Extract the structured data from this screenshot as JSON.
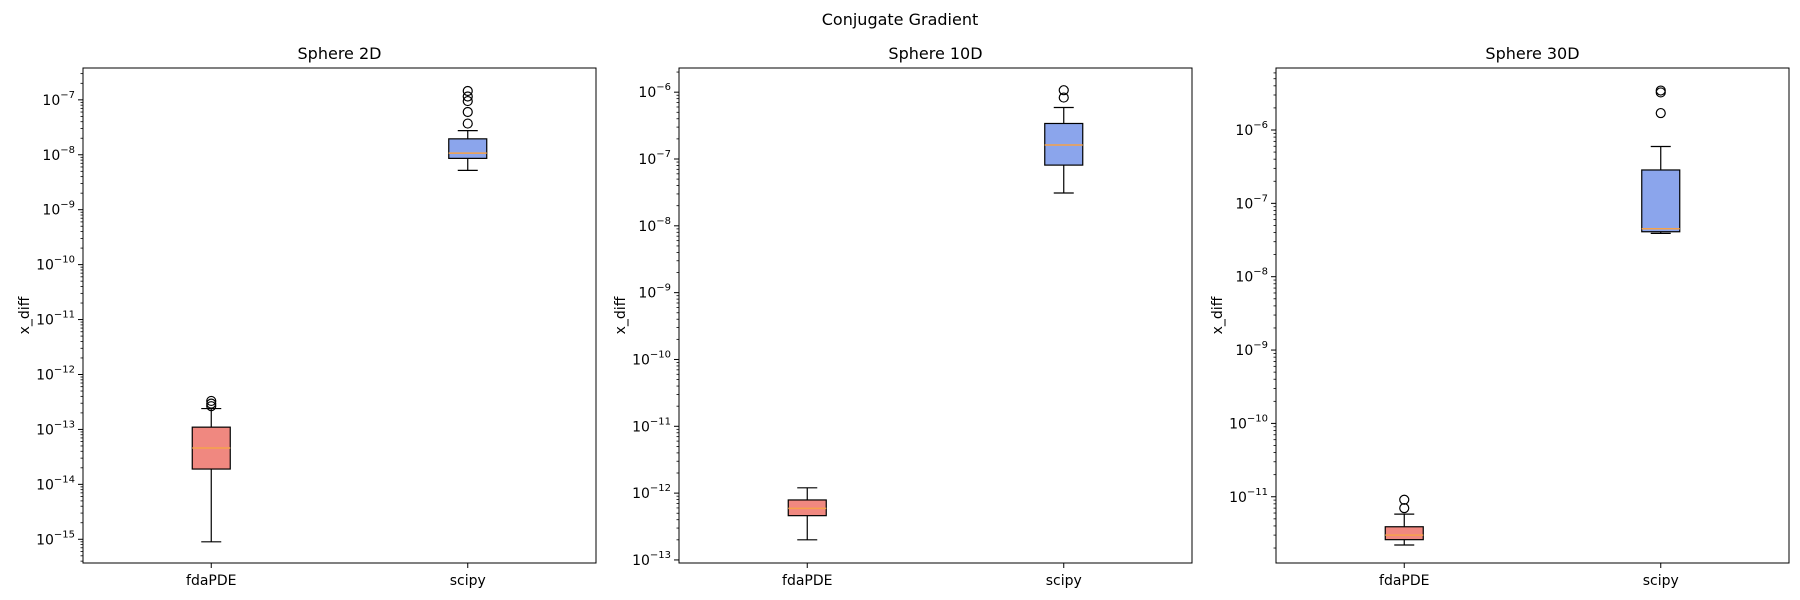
{
  "figure": {
    "suptitle": "Conjugate Gradient"
  },
  "colors": {
    "fdaPDE": "#f08880",
    "scipy": "#8ba5ec",
    "median": "#f5a24a",
    "edge": "#000000"
  },
  "chart_data": [
    {
      "type": "boxplot",
      "title": "Sphere 2D",
      "ylabel": "x_diff",
      "xlabel": "",
      "yscale": "log",
      "ylim": [
        3.7e-16,
        3.8e-07
      ],
      "ytick_exponents": [
        -15,
        -14,
        -13,
        -12,
        -11,
        -10,
        -9,
        -8,
        -7
      ],
      "categories": [
        "fdaPDE",
        "scipy"
      ],
      "boxes": [
        {
          "label": "fdaPDE",
          "whislo": 9e-16,
          "q1": 1.9e-14,
          "median": 4.6e-14,
          "q3": 1.1e-13,
          "whishi": 2.4e-13,
          "fliers": [
            2.65e-13,
            2.95e-13,
            3.3e-13
          ]
        },
        {
          "label": "scipy",
          "whislo": 5.2e-09,
          "q1": 8.6e-09,
          "median": 1.07e-08,
          "q3": 1.95e-08,
          "whishi": 2.75e-08,
          "fliers": [
            3.7e-08,
            6e-08,
            9.5e-08,
            1.15e-07,
            1.45e-07
          ]
        }
      ]
    },
    {
      "type": "boxplot",
      "title": "Sphere 10D",
      "ylabel": "x_diff",
      "xlabel": "",
      "yscale": "log",
      "ylim": [
        9e-14,
        2.3e-06
      ],
      "ytick_exponents": [
        -13,
        -12,
        -11,
        -10,
        -9,
        -8,
        -7,
        -6
      ],
      "categories": [
        "fdaPDE",
        "scipy"
      ],
      "boxes": [
        {
          "label": "fdaPDE",
          "whislo": 2e-13,
          "q1": 4.6e-13,
          "median": 5.9e-13,
          "q3": 7.9e-13,
          "whishi": 1.2e-12,
          "fliers": []
        },
        {
          "label": "scipy",
          "whislo": 3.1e-08,
          "q1": 8.1e-08,
          "median": 1.62e-07,
          "q3": 3.4e-07,
          "whishi": 5.9e-07,
          "fliers": [
            8.3e-07,
            1.07e-06
          ]
        }
      ]
    },
    {
      "type": "boxplot",
      "title": "Sphere 30D",
      "ylabel": "x_diff",
      "xlabel": "",
      "yscale": "log",
      "ylim": [
        1.25e-12,
        7e-06
      ],
      "ytick_exponents": [
        -11,
        -10,
        -9,
        -8,
        -7,
        -6
      ],
      "categories": [
        "fdaPDE",
        "scipy"
      ],
      "boxes": [
        {
          "label": "fdaPDE",
          "whislo": 2.2e-12,
          "q1": 2.6e-12,
          "median": 3e-12,
          "q3": 3.9e-12,
          "whishi": 5.8e-12,
          "fliers": [
            7e-12,
            9.1e-12
          ]
        },
        {
          "label": "scipy",
          "whislo": 3.9e-08,
          "q1": 4.1e-08,
          "median": 4.5e-08,
          "q3": 2.85e-07,
          "whishi": 5.95e-07,
          "fliers": [
            1.7e-06,
            3.25e-06,
            3.45e-06
          ]
        }
      ]
    }
  ]
}
